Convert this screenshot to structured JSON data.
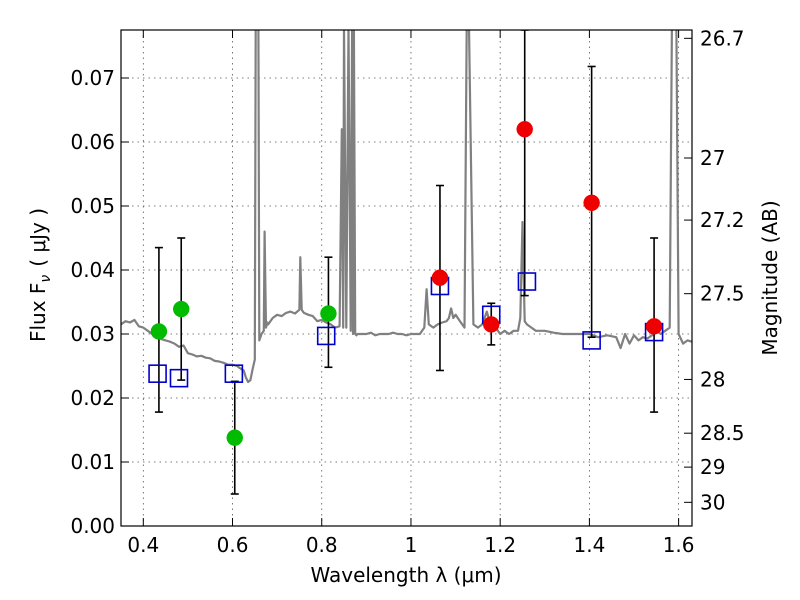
{
  "chart_data": {
    "type": "scatter",
    "xlabel": "Wavelength  λ (μm)",
    "ylabel": "Flux  F",
    "ylabel_sub": "ν",
    "ylabel_unit": "( μJy )",
    "y2label": "Magnitude (AB)",
    "xlim": [
      0.35,
      1.63
    ],
    "ylim": [
      0.0,
      0.0775
    ],
    "grid": true,
    "x_ticks": [
      {
        "value": 0.4,
        "label": "0.4"
      },
      {
        "value": 0.6,
        "label": "0.6"
      },
      {
        "value": 0.8,
        "label": "0.8"
      },
      {
        "value": 1.0,
        "label": "1"
      },
      {
        "value": 1.2,
        "label": "1.2"
      },
      {
        "value": 1.4,
        "label": "1.4"
      },
      {
        "value": 1.6,
        "label": "1.6"
      }
    ],
    "y_ticks": [
      {
        "value": 0.0,
        "label": "0.00"
      },
      {
        "value": 0.01,
        "label": "0.01"
      },
      {
        "value": 0.02,
        "label": "0.02"
      },
      {
        "value": 0.03,
        "label": "0.03"
      },
      {
        "value": 0.04,
        "label": "0.04"
      },
      {
        "value": 0.05,
        "label": "0.05"
      },
      {
        "value": 0.06,
        "label": "0.06"
      },
      {
        "value": 0.07,
        "label": "0.07"
      }
    ],
    "y2_ticks": [
      {
        "flux": 0.0762,
        "label": "26.7"
      },
      {
        "flux": 0.0575,
        "label": "27"
      },
      {
        "flux": 0.0478,
        "label": "27.2"
      },
      {
        "flux": 0.0363,
        "label": "27.5"
      },
      {
        "flux": 0.0229,
        "label": "28"
      },
      {
        "flux": 0.0145,
        "label": "28.5"
      },
      {
        "flux": 0.0092,
        "label": "29"
      },
      {
        "flux": 0.0037,
        "label": "30"
      }
    ],
    "series": [
      {
        "name": "model spectrum",
        "kind": "line",
        "color": "#808080",
        "x": [
          0.35,
          0.36,
          0.37,
          0.38,
          0.39,
          0.4,
          0.41,
          0.42,
          0.43,
          0.44,
          0.45,
          0.46,
          0.47,
          0.48,
          0.49,
          0.5,
          0.51,
          0.52,
          0.53,
          0.54,
          0.55,
          0.56,
          0.57,
          0.58,
          0.59,
          0.6,
          0.61,
          0.62,
          0.625,
          0.63,
          0.635,
          0.64,
          0.645,
          0.65,
          0.652,
          0.655,
          0.658,
          0.66,
          0.665,
          0.67,
          0.672,
          0.675,
          0.678,
          0.68,
          0.69,
          0.7,
          0.71,
          0.72,
          0.73,
          0.74,
          0.75,
          0.752,
          0.755,
          0.758,
          0.76,
          0.77,
          0.78,
          0.79,
          0.8,
          0.81,
          0.82,
          0.83,
          0.84,
          0.845,
          0.848,
          0.85,
          0.855,
          0.86,
          0.865,
          0.868,
          0.87,
          0.872,
          0.875,
          0.878,
          0.88,
          0.89,
          0.9,
          0.91,
          0.92,
          0.93,
          0.94,
          0.95,
          0.96,
          0.97,
          0.98,
          0.99,
          1.0,
          1.01,
          1.02,
          1.025,
          1.03,
          1.035,
          1.04,
          1.05,
          1.06,
          1.07,
          1.08,
          1.085,
          1.09,
          1.095,
          1.1,
          1.11,
          1.12,
          1.125,
          1.13,
          1.14,
          1.15,
          1.16,
          1.17,
          1.18,
          1.19,
          1.2,
          1.21,
          1.22,
          1.23,
          1.24,
          1.245,
          1.25,
          1.255,
          1.26,
          1.27,
          1.28,
          1.29,
          1.3,
          1.32,
          1.34,
          1.36,
          1.38,
          1.4,
          1.42,
          1.44,
          1.46,
          1.47,
          1.48,
          1.49,
          1.5,
          1.51,
          1.52,
          1.53,
          1.54,
          1.55,
          1.56,
          1.57,
          1.58,
          1.585,
          1.59,
          1.595,
          1.6,
          1.61,
          1.62,
          1.63
        ],
        "y": [
          0.0315,
          0.032,
          0.0318,
          0.0322,
          0.0312,
          0.031,
          0.0305,
          0.03,
          0.0298,
          0.0292,
          0.029,
          0.0288,
          0.0285,
          0.028,
          0.0282,
          0.027,
          0.0268,
          0.0265,
          0.0266,
          0.0263,
          0.0262,
          0.0258,
          0.0257,
          0.0255,
          0.0252,
          0.0252,
          0.025,
          0.0245,
          0.0243,
          0.0232,
          0.0225,
          0.0228,
          0.0245,
          0.026,
          0.078,
          0.078,
          0.078,
          0.029,
          0.03,
          0.0305,
          0.046,
          0.031,
          0.0318,
          0.0315,
          0.0325,
          0.033,
          0.0328,
          0.0333,
          0.0335,
          0.0332,
          0.0338,
          0.042,
          0.0338,
          0.0335,
          0.0333,
          0.033,
          0.0328,
          0.032,
          0.0322,
          0.0318,
          0.0315,
          0.031,
          0.0312,
          0.062,
          0.031,
          0.078,
          0.031,
          0.078,
          0.0305,
          0.078,
          0.03,
          0.078,
          0.03,
          0.0298,
          0.03,
          0.03,
          0.03,
          0.0302,
          0.0298,
          0.03,
          0.03,
          0.03,
          0.0302,
          0.03,
          0.03,
          0.0298,
          0.03,
          0.03,
          0.03,
          0.0305,
          0.031,
          0.037,
          0.0315,
          0.031,
          0.0315,
          0.0318,
          0.032,
          0.0325,
          0.034,
          0.0325,
          0.033,
          0.032,
          0.031,
          0.078,
          0.078,
          0.0315,
          0.031,
          0.0315,
          0.0335,
          0.031,
          0.031,
          0.03,
          0.0305,
          0.03,
          0.0305,
          0.0305,
          0.0325,
          0.0475,
          0.032,
          0.0315,
          0.031,
          0.0305,
          0.0305,
          0.0305,
          0.0302,
          0.03,
          0.03,
          0.03,
          0.03,
          0.0295,
          0.0298,
          0.0295,
          0.0278,
          0.03,
          0.0285,
          0.0298,
          0.029,
          0.0295,
          0.0293,
          0.0298,
          0.0305,
          0.03,
          0.0305,
          0.031,
          0.078,
          0.078,
          0.078,
          0.03,
          0.0285,
          0.029,
          0.0288
        ]
      },
      {
        "name": "green points",
        "kind": "points",
        "marker": "circle",
        "color": "#00bb00",
        "x": [
          0.435,
          0.485,
          0.605,
          0.815
        ],
        "y": [
          0.0304,
          0.0339,
          0.0138,
          0.0332
        ]
      },
      {
        "name": "red points",
        "kind": "points",
        "marker": "circle",
        "color": "#ee0000",
        "x": [
          1.065,
          1.18,
          1.255,
          1.405,
          1.545
        ],
        "y": [
          0.0388,
          0.0315,
          0.062,
          0.0505,
          0.0312
        ]
      },
      {
        "name": "model photometry",
        "kind": "points",
        "marker": "open-square",
        "color": "#0000cc",
        "x": [
          0.432,
          0.48,
          0.603,
          0.81,
          1.065,
          1.18,
          1.26,
          1.405,
          1.545
        ],
        "y": [
          0.0238,
          0.0231,
          0.0238,
          0.0297,
          0.0375,
          0.033,
          0.0382,
          0.029,
          0.0303
        ]
      }
    ],
    "error_bars": [
      {
        "x": 0.435,
        "low": 0.0178,
        "high": 0.0435
      },
      {
        "x": 0.485,
        "low": 0.0228,
        "high": 0.045
      },
      {
        "x": 0.605,
        "low": 0.005,
        "high": 0.0226
      },
      {
        "x": 0.815,
        "low": 0.0248,
        "high": 0.042
      },
      {
        "x": 1.065,
        "low": 0.0243,
        "high": 0.0532
      },
      {
        "x": 1.18,
        "low": 0.0283,
        "high": 0.0348
      },
      {
        "x": 1.255,
        "low": 0.036,
        "high": 0.0775
      },
      {
        "x": 1.405,
        "low": 0.0295,
        "high": 0.0718
      },
      {
        "x": 1.545,
        "low": 0.0178,
        "high": 0.045
      }
    ]
  }
}
